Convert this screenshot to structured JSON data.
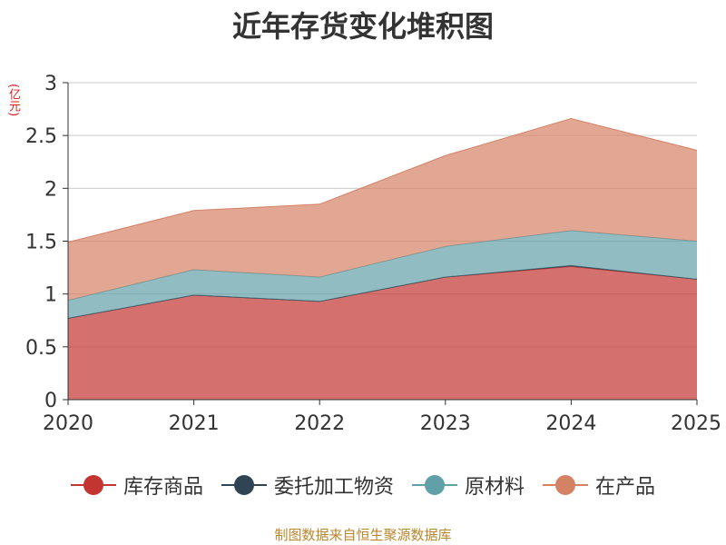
{
  "chart_data": {
    "type": "area",
    "stacked": true,
    "title": "近年存货变化堆积图",
    "ylabel": "(亿元)",
    "xlabel": "",
    "x": [
      "2020",
      "2021",
      "2022",
      "2023",
      "2024",
      "2025"
    ],
    "ylim": [
      0,
      3
    ],
    "yticks": [
      "0",
      "0.5",
      "1",
      "1.5",
      "2",
      "2.5",
      "3"
    ],
    "legend_position": "bottom",
    "series": [
      {
        "name": "库存商品",
        "color": "#c23531",
        "values": [
          0.77,
          0.99,
          0.93,
          1.16,
          1.26,
          1.14
        ]
      },
      {
        "name": "委托加工物资",
        "color": "#2f4554",
        "values": [
          0.0,
          0.0,
          0.0,
          0.0,
          0.01,
          0.0
        ]
      },
      {
        "name": "原材料",
        "color": "#61a0a8",
        "values": [
          0.17,
          0.24,
          0.23,
          0.29,
          0.33,
          0.36
        ]
      },
      {
        "name": "在产品",
        "color": "#d48265",
        "values": [
          0.55,
          0.56,
          0.69,
          0.86,
          1.06,
          0.86
        ]
      }
    ]
  },
  "footer": "制图数据来自恒生聚源数据库"
}
